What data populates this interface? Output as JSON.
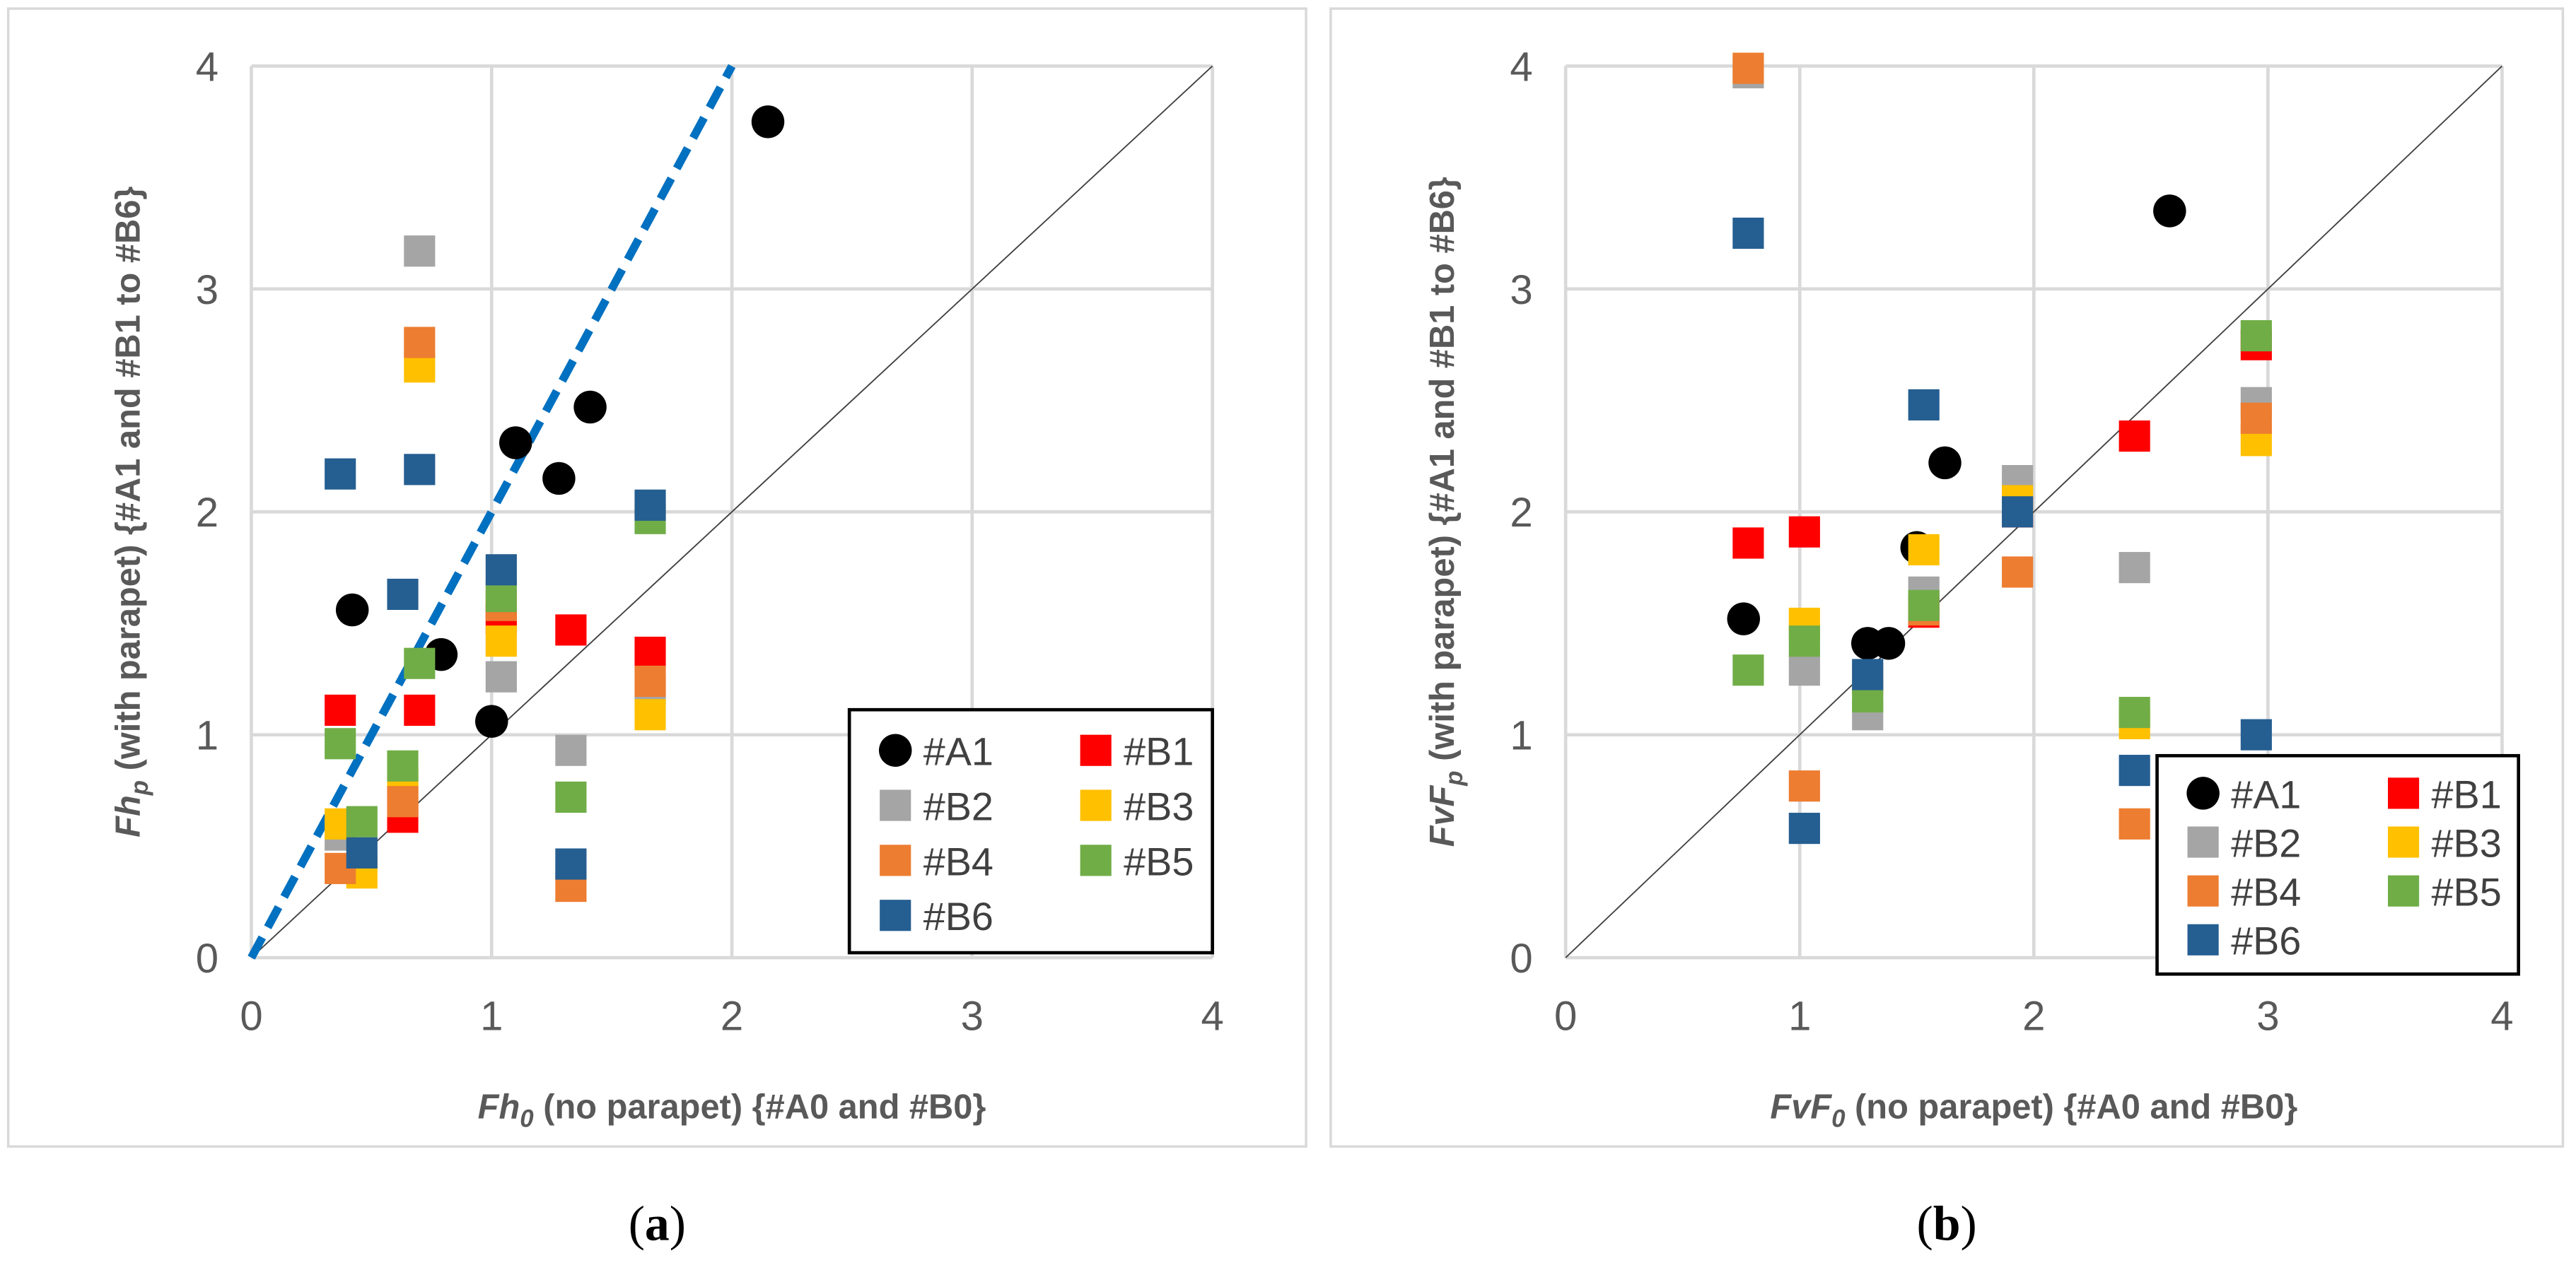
{
  "chart_data": [
    {
      "type": "scatter",
      "panel_label": {
        "open": "(",
        "letter": "a",
        "close": ")"
      },
      "xlabel": {
        "var": "Fh",
        "sub": "0",
        "rest": " (no parapet) {#A0 and #B0}"
      },
      "ylabel": {
        "var": "Fh",
        "sub": "p",
        "rest": " (with parapet) {#A1 and #B1 to #B6}"
      },
      "xlim": [
        0,
        4
      ],
      "ylim": [
        0,
        4
      ],
      "xticks": [
        "0",
        "1",
        "2",
        "3",
        "4"
      ],
      "yticks": [
        "0",
        "1",
        "2",
        "3",
        "4"
      ],
      "grid": true,
      "legend_position": "bottom-right",
      "reference_lines": [
        {
          "name": "1:1",
          "points": [
            [
              0,
              0
            ],
            [
              4,
              4
            ]
          ],
          "color": "#404040",
          "style": "solid"
        },
        {
          "name": "2:1",
          "points": [
            [
              0,
              0
            ],
            [
              2,
              4
            ]
          ],
          "color": "#0070C0",
          "style": "dashed"
        }
      ],
      "series": [
        {
          "name": "#A1",
          "marker": "circle",
          "color": "#000000",
          "points": [
            [
              2.15,
              3.75
            ],
            [
              1.1,
              2.31
            ],
            [
              1.41,
              2.47
            ],
            [
              1.28,
              2.15
            ],
            [
              0.42,
              1.56
            ],
            [
              0.79,
              1.36
            ],
            [
              1.0,
              1.06
            ]
          ]
        },
        {
          "name": "#B1",
          "marker": "square",
          "color": "#FF0000",
          "points": [
            [
              0.37,
              1.11
            ],
            [
              0.7,
              1.11
            ],
            [
              0.63,
              0.63
            ],
            [
              1.04,
              1.52
            ],
            [
              1.33,
              1.47
            ],
            [
              1.66,
              1.37
            ]
          ]
        },
        {
          "name": "#B2",
          "marker": "square",
          "color": "#A5A5A5",
          "points": [
            [
              0.7,
              3.17
            ],
            [
              1.04,
              1.26
            ],
            [
              1.33,
              0.93
            ],
            [
              0.37,
              0.55
            ],
            [
              0.63,
              0.75
            ],
            [
              1.66,
              1.2
            ]
          ]
        },
        {
          "name": "#B3",
          "marker": "square",
          "color": "#FFC000",
          "points": [
            [
              0.7,
              2.65
            ],
            [
              1.04,
              1.42
            ],
            [
              1.66,
              1.09
            ],
            [
              0.37,
              0.6
            ],
            [
              0.46,
              0.38
            ],
            [
              0.63,
              0.78
            ]
          ]
        },
        {
          "name": "#B4",
          "marker": "square",
          "color": "#ED7D31",
          "points": [
            [
              0.7,
              2.76
            ],
            [
              1.04,
              1.58
            ],
            [
              1.66,
              1.24
            ],
            [
              1.33,
              0.32
            ],
            [
              0.37,
              0.4
            ],
            [
              0.63,
              0.7
            ]
          ]
        },
        {
          "name": "#B5",
          "marker": "square",
          "color": "#70AD47",
          "points": [
            [
              0.7,
              1.32
            ],
            [
              1.04,
              1.62
            ],
            [
              1.66,
              1.97
            ],
            [
              1.33,
              0.72
            ],
            [
              0.37,
              0.96
            ],
            [
              0.63,
              0.86
            ],
            [
              0.46,
              0.61
            ]
          ]
        },
        {
          "name": "#B6",
          "marker": "square",
          "color": "#255E91",
          "points": [
            [
              0.37,
              2.17
            ],
            [
              0.7,
              2.19
            ],
            [
              0.63,
              1.63
            ],
            [
              1.04,
              1.74
            ],
            [
              1.66,
              2.03
            ],
            [
              1.33,
              0.42
            ],
            [
              0.46,
              0.47
            ]
          ]
        }
      ]
    },
    {
      "type": "scatter",
      "panel_label": {
        "open": "(",
        "letter": "b",
        "close": ")"
      },
      "xlabel": {
        "var": "FvF",
        "sub": "0",
        "rest": " (no parapet) {#A0 and #B0}"
      },
      "ylabel": {
        "var": "FvF",
        "sub": "p",
        "rest": " (with parapet) {#A1 and #B1 to #B6}"
      },
      "xlim": [
        0,
        4
      ],
      "ylim": [
        0,
        4
      ],
      "xticks": [
        "0",
        "1",
        "2",
        "3",
        "4"
      ],
      "yticks": [
        "0",
        "1",
        "2",
        "3",
        "4"
      ],
      "grid": true,
      "legend_position": "bottom-right",
      "reference_lines": [
        {
          "name": "1:1",
          "points": [
            [
              0,
              0
            ],
            [
              4,
              4
            ]
          ],
          "color": "#404040",
          "style": "solid"
        }
      ],
      "series": [
        {
          "name": "#A1",
          "marker": "circle",
          "color": "#000000",
          "points": [
            [
              2.58,
              3.35
            ],
            [
              1.62,
              2.22
            ],
            [
              1.5,
              1.84
            ],
            [
              0.76,
              1.52
            ],
            [
              1.29,
              1.41
            ],
            [
              1.38,
              1.41
            ]
          ]
        },
        {
          "name": "#B1",
          "marker": "square",
          "color": "#FF0000",
          "points": [
            [
              0.78,
              1.86
            ],
            [
              1.02,
              1.91
            ],
            [
              1.53,
              1.55
            ],
            [
              1.93,
              2.0
            ],
            [
              2.43,
              2.34
            ],
            [
              2.95,
              2.75
            ]
          ]
        },
        {
          "name": "#B2",
          "marker": "square",
          "color": "#A5A5A5",
          "points": [
            [
              0.78,
              3.97
            ],
            [
              1.02,
              1.29
            ],
            [
              1.29,
              1.09
            ],
            [
              1.53,
              1.64
            ],
            [
              1.93,
              2.14
            ],
            [
              2.43,
              1.75
            ],
            [
              2.95,
              2.49
            ]
          ]
        },
        {
          "name": "#B3",
          "marker": "square",
          "color": "#FFC000",
          "points": [
            [
              1.02,
              1.5
            ],
            [
              1.53,
              1.83
            ],
            [
              1.93,
              2.05
            ],
            [
              2.43,
              1.05
            ],
            [
              2.95,
              2.32
            ]
          ]
        },
        {
          "name": "#B4",
          "marker": "square",
          "color": "#ED7D31",
          "points": [
            [
              0.78,
              3.99
            ],
            [
              1.02,
              0.77
            ],
            [
              1.29,
              1.25
            ],
            [
              1.53,
              1.56
            ],
            [
              1.93,
              1.73
            ],
            [
              2.43,
              0.6
            ],
            [
              2.95,
              2.42
            ]
          ]
        },
        {
          "name": "#B5",
          "marker": "square",
          "color": "#70AD47",
          "points": [
            [
              0.78,
              1.29
            ],
            [
              1.02,
              1.42
            ],
            [
              1.29,
              1.17
            ],
            [
              1.53,
              1.58
            ],
            [
              2.43,
              1.1
            ],
            [
              2.95,
              2.79
            ]
          ]
        },
        {
          "name": "#B6",
          "marker": "square",
          "color": "#255E91",
          "points": [
            [
              0.78,
              3.25
            ],
            [
              1.02,
              0.58
            ],
            [
              1.29,
              1.27
            ],
            [
              1.53,
              2.48
            ],
            [
              1.93,
              2.0
            ],
            [
              2.43,
              0.84
            ],
            [
              2.95,
              1.0
            ]
          ]
        }
      ]
    }
  ]
}
